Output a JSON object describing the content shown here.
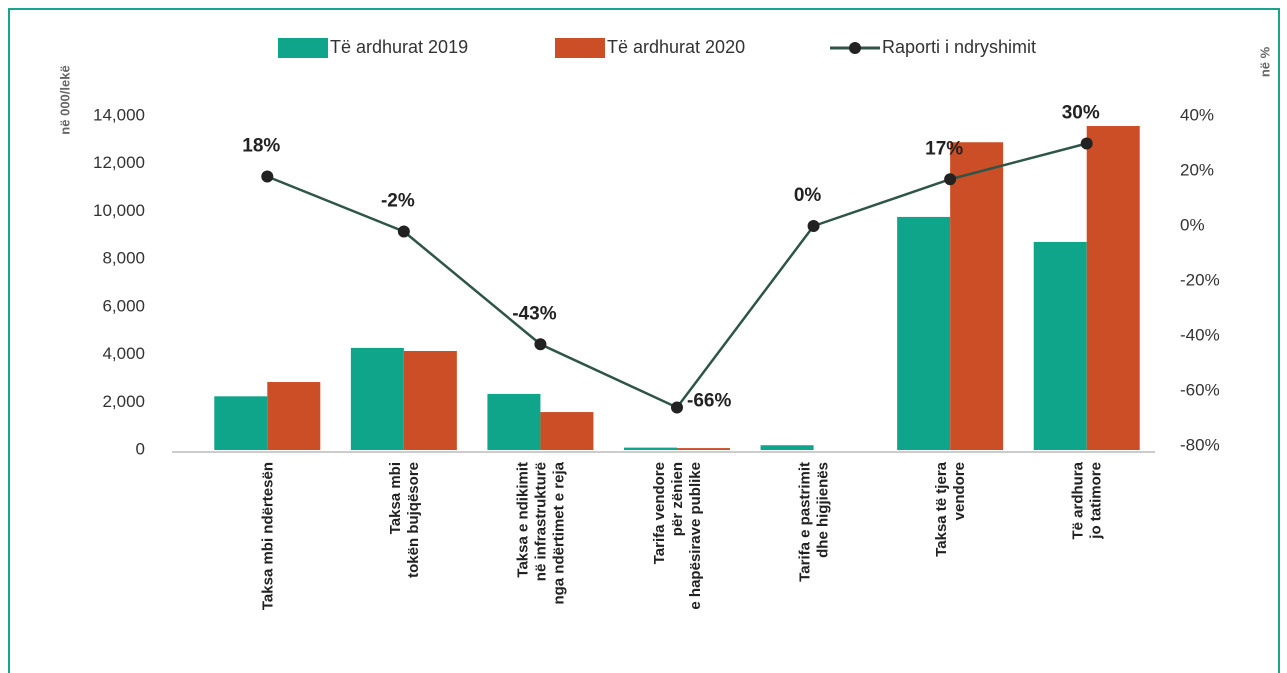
{
  "chart_data": {
    "type": "bar_line",
    "y_axis_label": "në 000/lekë",
    "y2_axis_label": "në %",
    "categories": [
      "Taksa mbi ndërtesën",
      "Taksa mbi\ntokën bujqësore",
      "Taksa e ndikimit\nnë infrastrukturë\nnga ndërtimet e reja",
      "Tarifa vendore\npër zënien\ne hapësirave publike",
      "Tarifa e pastrimit\ndhe higjienës",
      "Taksa të tjera\nvendore",
      "Të ardhura\njo tatimore"
    ],
    "series": [
      {
        "name": "Të ardhurat 2019",
        "color": "#0fa58a",
        "type": "bar",
        "values": [
          2250,
          4280,
          2350,
          100,
          200,
          9770,
          8720
        ]
      },
      {
        "name": "Të ardhurat 2020",
        "color": "#cc4e26",
        "type": "bar",
        "values": [
          2850,
          4150,
          1590,
          80,
          null,
          12900,
          13580
        ]
      },
      {
        "name": "Raporti i ndryshimit",
        "color": "#2e5547",
        "type": "line",
        "axis": "y2",
        "values": [
          18,
          -2,
          -43,
          -66,
          0,
          17,
          30
        ],
        "value_labels": [
          "18%",
          "-2%",
          "-43%",
          "-66%",
          "0%",
          "17%",
          "30%"
        ]
      }
    ],
    "ylim": [
      0,
      14000
    ],
    "yticks": [
      0,
      {
        "value": 2000,
        "label": "2,000"
      },
      {
        "value": 4000,
        "label": "4,000"
      },
      {
        "value": 6000,
        "label": "6,000"
      },
      {
        "value": 8000,
        "label": "8,000"
      },
      {
        "value": 10000,
        "label": "10,000"
      },
      {
        "value": 12000,
        "label": "12,000"
      },
      {
        "value": 14000,
        "label": "14,000"
      }
    ],
    "y2lim": [
      -80,
      40
    ],
    "y2ticks": [
      {
        "value": -80,
        "label": "-80%"
      },
      {
        "value": -60,
        "label": "-60%"
      },
      {
        "value": -40,
        "label": "-40%"
      },
      {
        "value": -20,
        "label": "-20%"
      },
      {
        "value": 0,
        "label": "0%"
      },
      {
        "value": 20,
        "label": "20%"
      },
      {
        "value": 40,
        "label": "40%"
      }
    ],
    "legend": "top"
  }
}
